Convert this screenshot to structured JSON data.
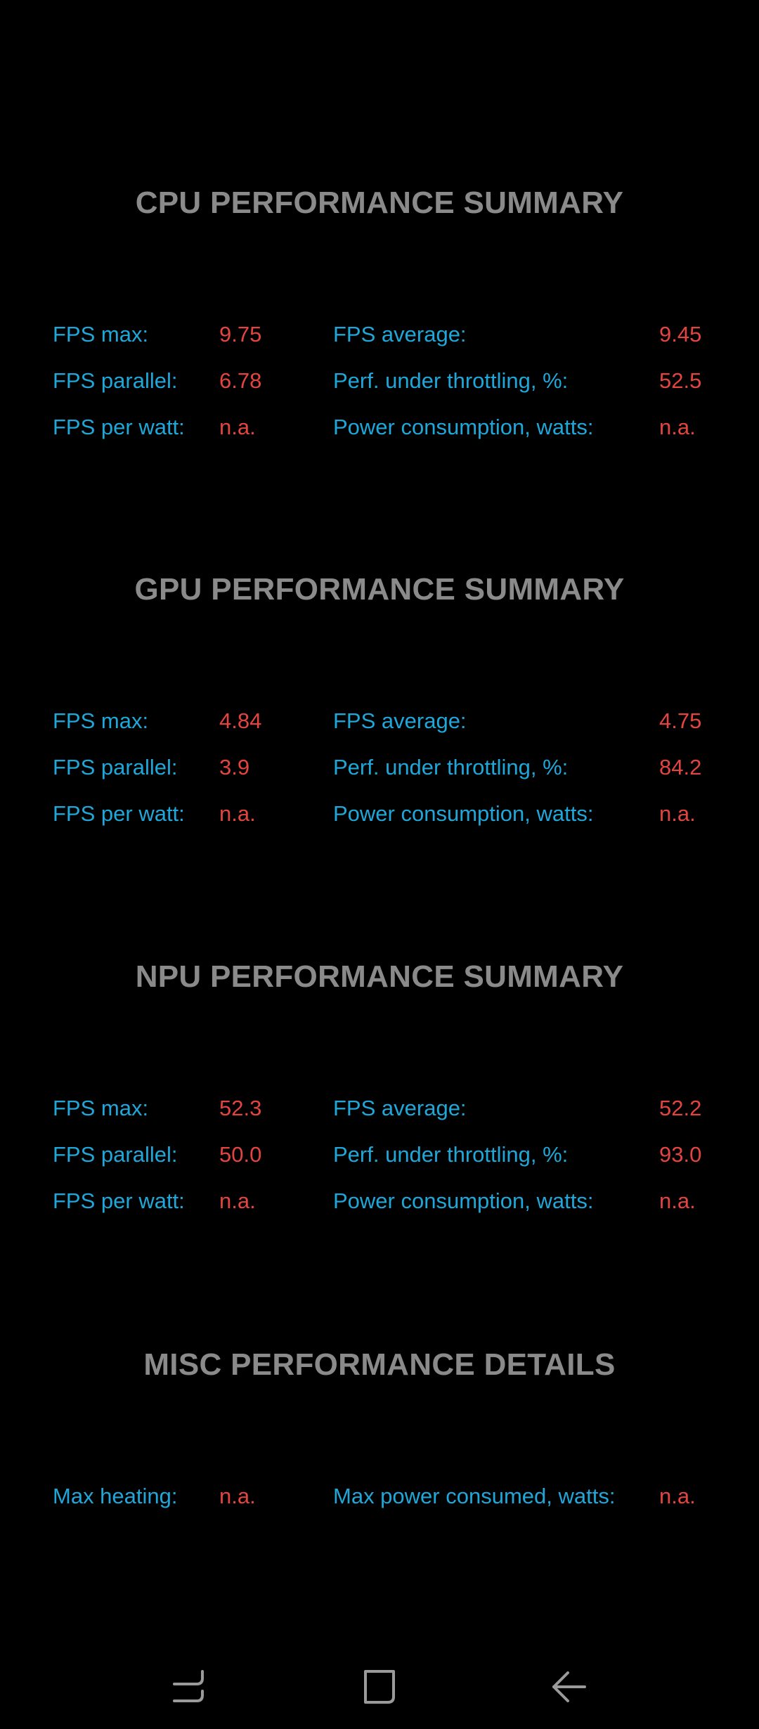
{
  "sections": [
    {
      "title": "CPU PERFORMANCE SUMMARY",
      "rows": [
        {
          "left_label": "FPS max:",
          "left_value": "9.75",
          "right_label": "FPS average:",
          "right_value": "9.45"
        },
        {
          "left_label": "FPS parallel:",
          "left_value": "6.78",
          "right_label": "Perf. under throttling, %:",
          "right_value": "52.5"
        },
        {
          "left_label": "FPS per watt:",
          "left_value": "n.a.",
          "right_label": "Power consumption, watts:",
          "right_value": "n.a."
        }
      ]
    },
    {
      "title": "GPU PERFORMANCE SUMMARY",
      "rows": [
        {
          "left_label": "FPS max:",
          "left_value": "4.84",
          "right_label": "FPS average:",
          "right_value": "4.75"
        },
        {
          "left_label": "FPS parallel:",
          "left_value": "3.9",
          "right_label": "Perf. under throttling, %:",
          "right_value": "84.2"
        },
        {
          "left_label": "FPS per watt:",
          "left_value": "n.a.",
          "right_label": "Power consumption, watts:",
          "right_value": "n.a."
        }
      ]
    },
    {
      "title": "NPU PERFORMANCE SUMMARY",
      "rows": [
        {
          "left_label": "FPS max:",
          "left_value": "52.3",
          "right_label": "FPS average:",
          "right_value": "52.2"
        },
        {
          "left_label": "FPS parallel:",
          "left_value": "50.0",
          "right_label": "Perf. under throttling, %:",
          "right_value": "93.0"
        },
        {
          "left_label": "FPS per watt:",
          "left_value": "n.a.",
          "right_label": "Power consumption, watts:",
          "right_value": "n.a."
        }
      ]
    },
    {
      "title": "MISC PERFORMANCE DETAILS",
      "rows": [
        {
          "left_label": "Max heating:",
          "left_value": "n.a.",
          "right_label": "Max power consumed, watts:",
          "right_value": "n.a."
        }
      ]
    }
  ],
  "navbar": {
    "buttons": [
      "recent-apps-icon",
      "home-icon",
      "back-icon"
    ]
  },
  "colors": {
    "background": "#000000",
    "title": "#8a8a8a",
    "label": "#1ea7d8",
    "value": "#e2453f",
    "navbar_icon": "#9a9a9a"
  }
}
